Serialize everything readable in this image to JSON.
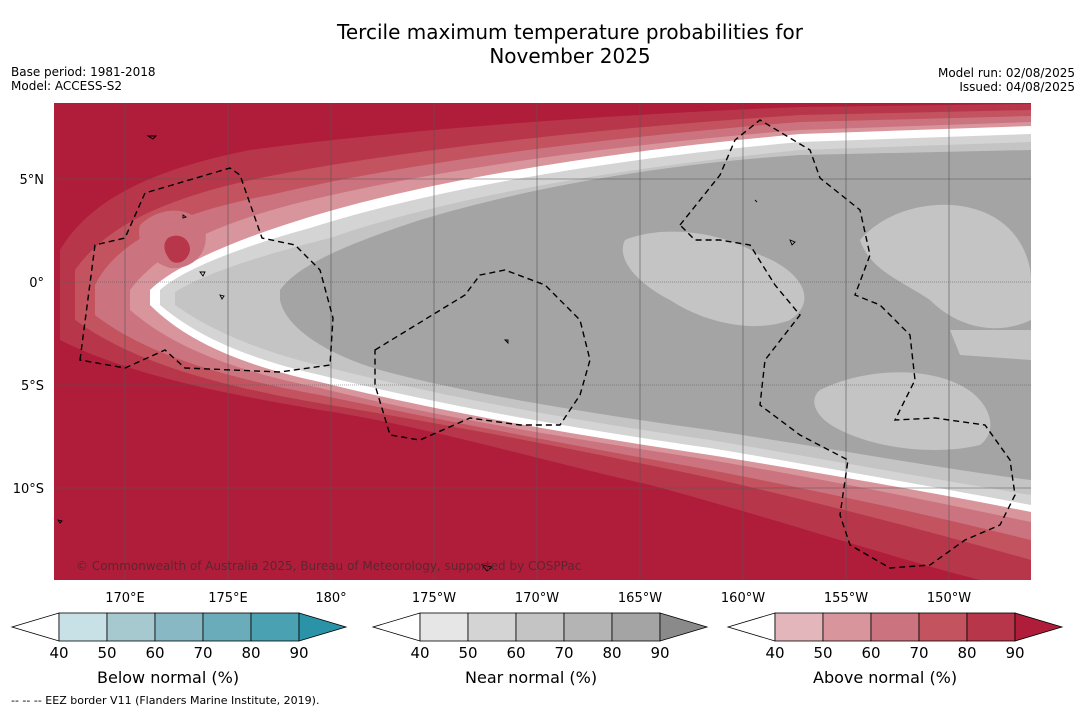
{
  "title": {
    "line1": "Tercile maximum temperature probabilities for",
    "line2": "November 2025"
  },
  "meta_left": {
    "base_period": "Base period: 1981-2018",
    "model": "Model: ACCESS-S2"
  },
  "meta_right": {
    "model_run": "Model run: 02/08/2025",
    "issued": "Issued: 04/08/2025"
  },
  "map": {
    "lat_labels": [
      "5°N",
      "0°",
      "5°S",
      "10°S"
    ],
    "lon_labels": [
      "170°E",
      "175°E",
      "180°",
      "175°W",
      "170°W",
      "165°W",
      "160°W",
      "155°W",
      "150°W"
    ],
    "copyright": "© Commonwealth of Australia 2025, Bureau of Meteorology, supported by COSPPac"
  },
  "colorbars": [
    {
      "label": "Below normal (%)",
      "ticks": [
        "40",
        "50",
        "60",
        "70",
        "80",
        "90"
      ],
      "colors": [
        "#ffffff",
        "#c8e1e7",
        "#a6c8cf",
        "#88b8c3",
        "#6aacb9",
        "#49a1b1",
        "#2a93a8"
      ]
    },
    {
      "label": "Near normal (%)",
      "ticks": [
        "40",
        "50",
        "60",
        "70",
        "80",
        "90"
      ],
      "colors": [
        "#ffffff",
        "#e6e6e6",
        "#d4d4d4",
        "#c4c4c4",
        "#b4b4b4",
        "#a4a4a4",
        "#8a8a8a"
      ]
    },
    {
      "label": "Above normal (%)",
      "ticks": [
        "40",
        "50",
        "60",
        "70",
        "80",
        "90"
      ],
      "colors": [
        "#ffffff",
        "#e2b6bb",
        "#d8959c",
        "#cc7380",
        "#c2535f",
        "#b8364a",
        "#b01d3a"
      ]
    }
  ],
  "footnote": "--  --  -- EEZ border V11 (Flanders Marine Institute, 2019).",
  "field_colors": {
    "above_90": "#b01d3a",
    "above_80": "#b8364a",
    "above_70": "#c2535f",
    "above_60": "#cc7380",
    "above_50": "#d8959c",
    "white": "#ffffff",
    "near_50": "#d4d4d4",
    "near_60": "#c4c4c4",
    "near_70": "#a4a4a4"
  }
}
